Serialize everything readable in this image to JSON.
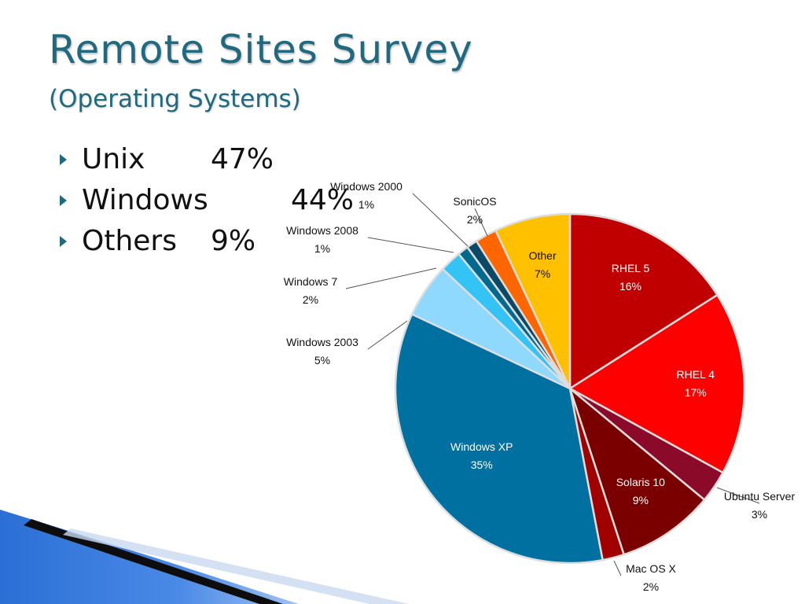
{
  "slide": {
    "title": "Remote Sites Survey",
    "subtitle": "(Operating Systems)",
    "bullets": [
      {
        "label": "Unix",
        "value": "47%"
      },
      {
        "label": "Windows",
        "value": "44%"
      },
      {
        "label": "Others",
        "value": "9%"
      }
    ],
    "colors": {
      "title": "#1f6a80",
      "bullet_arrow": "#1f6a80"
    }
  },
  "chart_data": {
    "type": "pie",
    "title": "",
    "start_angle_deg": 0,
    "direction": "clockwise",
    "slices": [
      {
        "label": "RHEL 5",
        "value": 16,
        "display": "16%",
        "color": "#c00000",
        "label_inside": true
      },
      {
        "label": "RHEL 4",
        "value": 17,
        "display": "17%",
        "color": "#ff0000",
        "label_inside": true
      },
      {
        "label": "Ubuntu Server",
        "value": 3,
        "display": "3%",
        "color": "#8b0a2a",
        "label_inside": false
      },
      {
        "label": "Solaris 10",
        "value": 9,
        "display": "9%",
        "color": "#7a0000",
        "label_inside": true
      },
      {
        "label": "Mac OS X",
        "value": 2,
        "display": "2%",
        "color": "#a00000",
        "label_inside": false
      },
      {
        "label": "Windows XP",
        "value": 35,
        "display": "35%",
        "color": "#0070a0",
        "label_inside": true
      },
      {
        "label": "Windows 2003",
        "value": 5,
        "display": "5%",
        "color": "#8fd9ff",
        "label_inside": false
      },
      {
        "label": "Windows 7",
        "value": 2,
        "display": "2%",
        "color": "#33c4f5",
        "label_inside": false
      },
      {
        "label": "Windows 2008",
        "value": 1,
        "display": "1%",
        "color": "#006a8e",
        "label_inside": false
      },
      {
        "label": "Windows 2000",
        "value": 1,
        "display": "1%",
        "color": "#0b4a66",
        "label_inside": false
      },
      {
        "label": "SonicOS",
        "value": 2,
        "display": "2%",
        "color": "#ff6600",
        "label_inside": false
      },
      {
        "label": "Other",
        "value": 7,
        "display": "7%",
        "color": "#ffc000",
        "label_inside": true
      }
    ],
    "legend": "none"
  }
}
